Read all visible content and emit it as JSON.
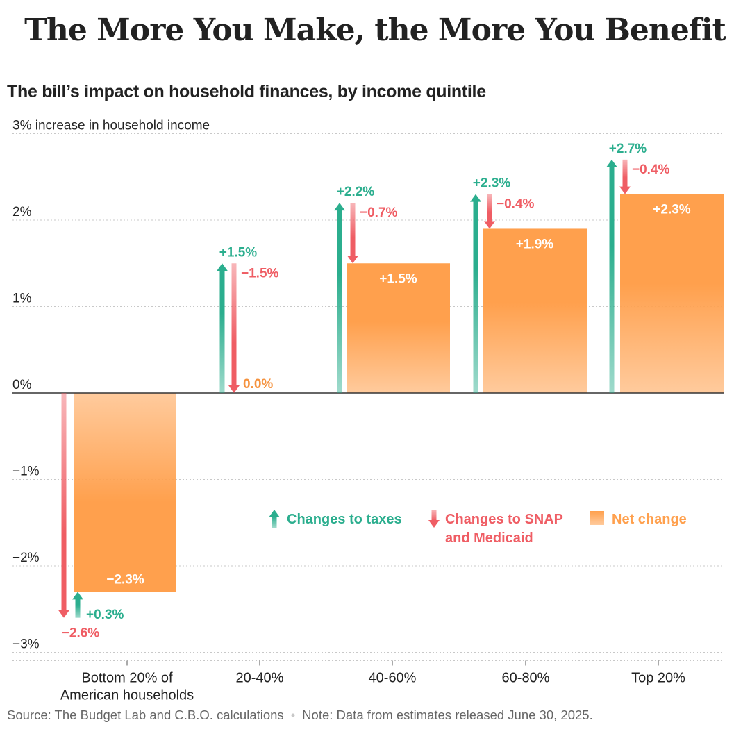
{
  "title": "The More You Make, the More You Benefit",
  "subtitle": "The bill’s impact on household finances, by income quintile",
  "footer": {
    "source": "Source: The Budget Lab and C.B.O. calculations",
    "note": "Note: Data from estimates released June 30, 2025."
  },
  "colors": {
    "taxes": "#2bae8e",
    "snap": "#ef5d64",
    "net": "#ffa04d",
    "net_label_zero": "#f5923e",
    "grid": "#c8c8c8",
    "axis": "#333333"
  },
  "chart_data": {
    "type": "bar",
    "title": "The bill’s impact on household finances, by income quintile",
    "categories": [
      [
        "Bottom 20% of",
        "American households"
      ],
      [
        "20-40%"
      ],
      [
        "40-60%"
      ],
      [
        "60-80%"
      ],
      [
        "Top 20%"
      ]
    ],
    "series": [
      {
        "name": "Changes to taxes",
        "kind": "arrow-up",
        "values": [
          0.3,
          1.5,
          2.2,
          2.3,
          2.7
        ],
        "labels": [
          "+0.3%",
          "+1.5%",
          "+2.2%",
          "+2.3%",
          "+2.7%"
        ]
      },
      {
        "name": "Changes to SNAP and Medicaid",
        "legend_lines": [
          "Changes to SNAP",
          "and Medicaid"
        ],
        "kind": "arrow-down",
        "values": [
          -2.6,
          -1.5,
          -0.7,
          -0.4,
          -0.4
        ],
        "labels": [
          "−2.6%",
          "−1.5%",
          "−0.7%",
          "−0.4%",
          "−0.4%"
        ]
      },
      {
        "name": "Net change",
        "kind": "bar",
        "values": [
          -2.3,
          0.0,
          1.5,
          1.9,
          2.3
        ],
        "labels": [
          "−2.3%",
          "0.0%",
          "+1.5%",
          "+1.9%",
          "+2.3%"
        ]
      }
    ],
    "y_ticks": [
      {
        "value": 3,
        "label": "3% increase in household income"
      },
      {
        "value": 2,
        "label": "2%"
      },
      {
        "value": 1,
        "label": "1%"
      },
      {
        "value": 0,
        "label": "0%"
      },
      {
        "value": -1,
        "label": "−1%"
      },
      {
        "value": -2,
        "label": "−2%"
      },
      {
        "value": -3,
        "label": "−3%"
      }
    ],
    "ylim": [
      -3,
      3
    ],
    "grid": true,
    "legend_position": "center-right"
  }
}
